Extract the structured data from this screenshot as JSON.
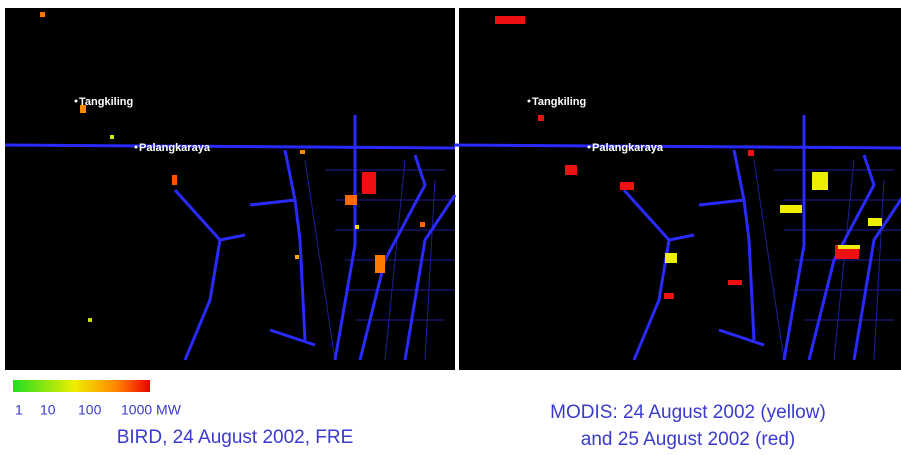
{
  "left_panel": {
    "labels": [
      "Tangkiling",
      "Palangkaraya"
    ]
  },
  "right_panel": {
    "labels": [
      "Tangkiling",
      "Palangkaraya"
    ]
  },
  "legend": {
    "ticks": [
      "1",
      "10",
      "100",
      "1000 MW"
    ]
  },
  "captions": {
    "left": "BIRD, 24 August 2002, FRE",
    "right": [
      "MODIS: 24 August 2002 (yellow)",
      "and 25 August 2002 (red)"
    ]
  }
}
